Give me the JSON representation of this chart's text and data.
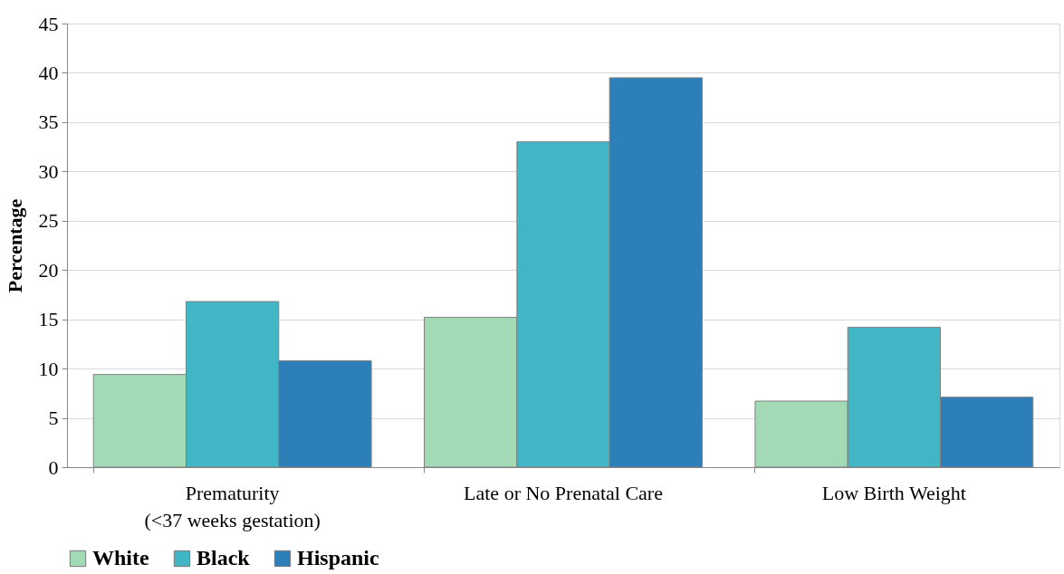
{
  "chart_data": {
    "type": "bar",
    "ylabel": "Percentage",
    "categories": [
      "Prematurity\n(<37 weeks gestation)",
      "Late or No Prenatal Care",
      "Low Birth Weight"
    ],
    "series": [
      {
        "name": "White",
        "color": "#a1dab4",
        "values": [
          9.4,
          15.2,
          6.7
        ]
      },
      {
        "name": "Black",
        "color": "#41b6c4",
        "values": [
          16.8,
          33.0,
          14.2
        ]
      },
      {
        "name": "Hispanic",
        "color": "#2c7fb8",
        "values": [
          10.8,
          39.5,
          7.1
        ]
      }
    ],
    "ylim": [
      0,
      45
    ],
    "yticks": [
      0,
      5,
      10,
      15,
      20,
      25,
      30,
      35,
      40,
      45
    ],
    "grid": "y",
    "legend": "bottom"
  }
}
